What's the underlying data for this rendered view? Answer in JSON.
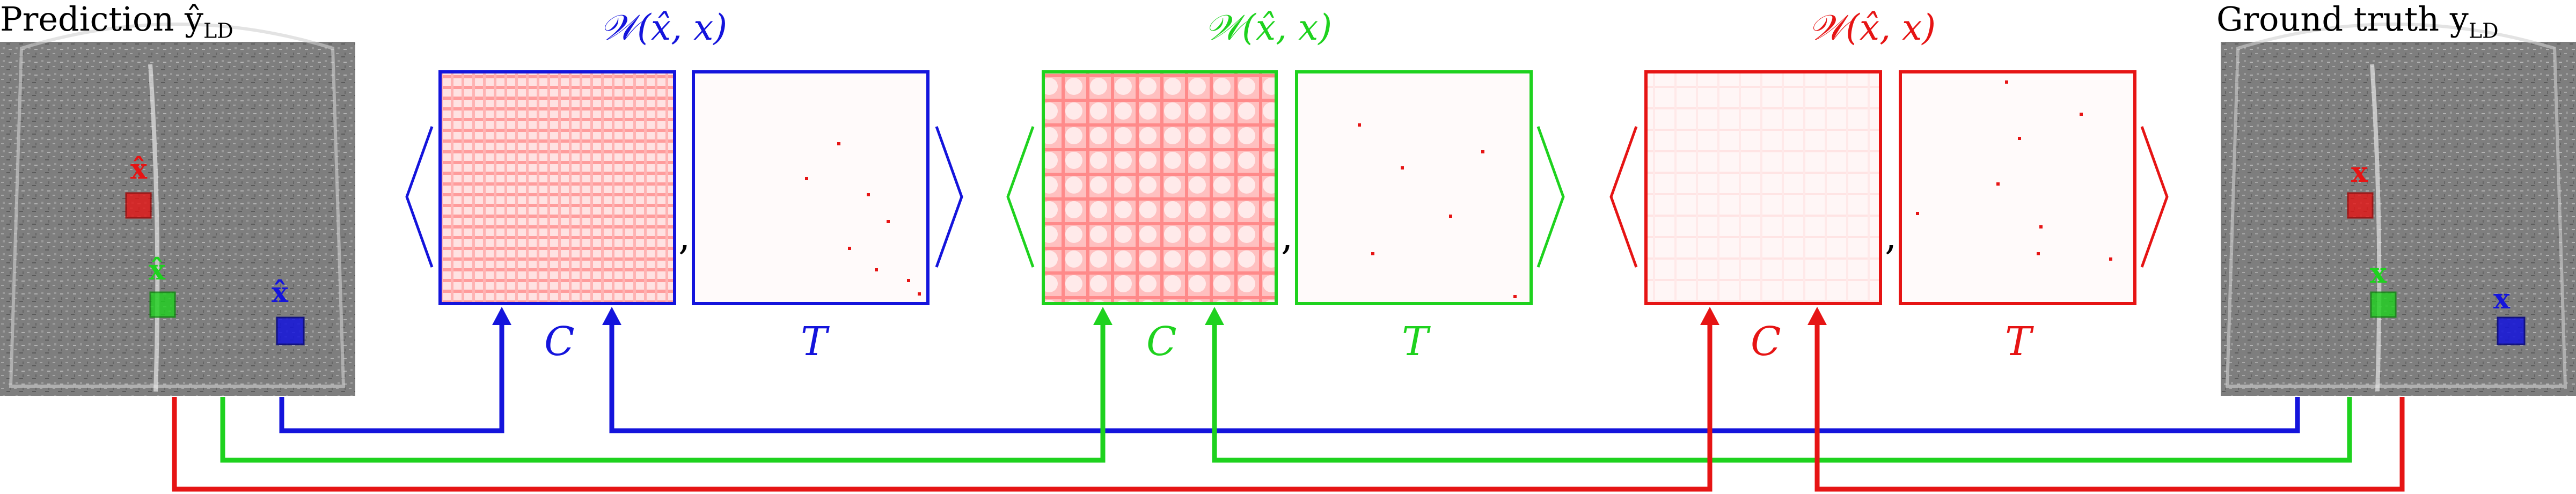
{
  "prediction_label": "Prediction ŷ",
  "prediction_subscript": "LD",
  "ground_truth_label": "Ground truth y",
  "ground_truth_subscript": "LD",
  "groups": [
    {
      "title": "𝒲(x̂, x)",
      "c_label": "C",
      "t_label": "T",
      "color": "#1414dc",
      "comma": ","
    },
    {
      "title": "𝒲(x̂, x)",
      "c_label": "C",
      "t_label": "T",
      "color": "#1ed21e",
      "comma": ","
    },
    {
      "title": "𝒲(x̂, x)",
      "c_label": "C",
      "t_label": "T",
      "color": "#e61414",
      "comma": ","
    }
  ],
  "patch_labels": {
    "pred_red": "x̂",
    "pred_green": "x̂",
    "pred_blue": "x̂",
    "gt_red": "x",
    "gt_green": "x",
    "gt_blue": "x"
  },
  "colors": {
    "blue": "#1414dc",
    "green": "#1ed21e",
    "red": "#e61414",
    "brain_bg": "#7d7d7d"
  }
}
